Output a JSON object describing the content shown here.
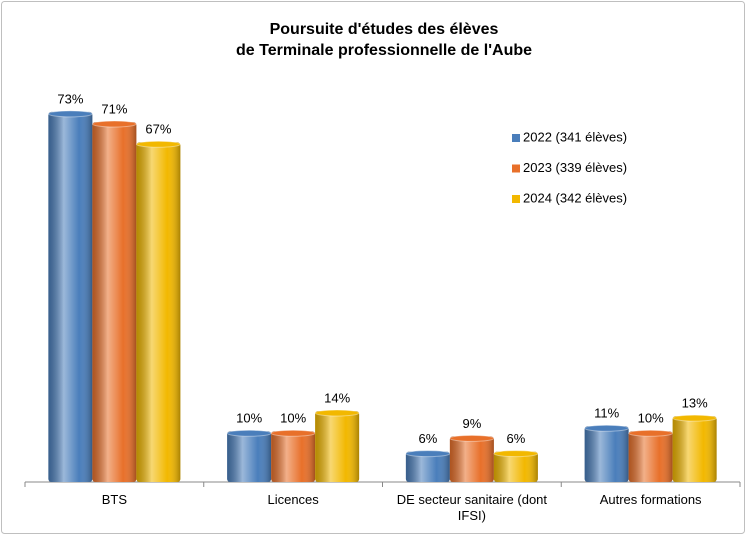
{
  "chart_data": {
    "type": "bar",
    "title": [
      "Poursuite d'études des élèves",
      "de Terminale professionnelle de l'Aube"
    ],
    "categories": [
      "BTS",
      "Licences",
      "DE secteur sanitaire (dont IFSI)",
      "Autres formations"
    ],
    "series": [
      {
        "name": "2022 (341 élèves)",
        "color": "#4a7ebb",
        "values": [
          73,
          10,
          6,
          11
        ],
        "value_labels": [
          "73%",
          "10%",
          "6%",
          "11%"
        ]
      },
      {
        "name": "2023 (339 élèves)",
        "color": "#e8702a",
        "values": [
          71,
          10,
          9,
          10
        ],
        "value_labels": [
          "71%",
          "10%",
          "9%",
          "10%"
        ]
      },
      {
        "name": "2024 (342 élèves)",
        "color": "#f2b800",
        "values": [
          67,
          14,
          6,
          13
        ],
        "value_labels": [
          "67%",
          "14%",
          "6%",
          "13%"
        ]
      }
    ],
    "legend": "upper right"
  }
}
